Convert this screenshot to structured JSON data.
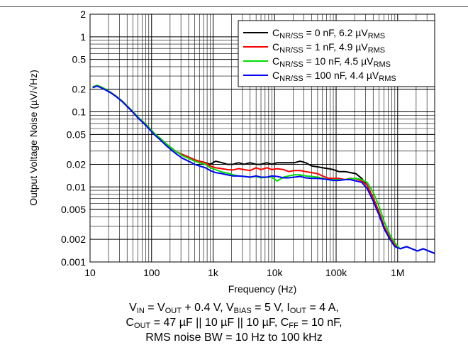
{
  "chart_data": {
    "type": "line",
    "xlabel": "Frequency (Hz)",
    "ylabel": "Output Voltage Noise (µV/√Hz)",
    "xscale": "log",
    "yscale": "log",
    "xlim": [
      10,
      4000000
    ],
    "ylim": [
      0.001,
      2
    ],
    "grid": true,
    "legend_position": "top-right",
    "x_ticks": [
      {
        "value": 10,
        "label": "10"
      },
      {
        "value": 100,
        "label": "100"
      },
      {
        "value": 1000,
        "label": "1k"
      },
      {
        "value": 10000,
        "label": "10k"
      },
      {
        "value": 100000,
        "label": "100k"
      },
      {
        "value": 1000000,
        "label": "1M"
      }
    ],
    "y_ticks": [
      {
        "value": 0.001,
        "label": "0.001"
      },
      {
        "value": 0.002,
        "label": "0.002"
      },
      {
        "value": 0.005,
        "label": "0.005"
      },
      {
        "value": 0.01,
        "label": "0.01"
      },
      {
        "value": 0.02,
        "label": "0.02"
      },
      {
        "value": 0.05,
        "label": "0.05"
      },
      {
        "value": 0.1,
        "label": "0.1"
      },
      {
        "value": 0.2,
        "label": "0.2"
      },
      {
        "value": 0.5,
        "label": "0.5"
      },
      {
        "value": 1,
        "label": "1"
      },
      {
        "value": 2,
        "label": "2"
      }
    ],
    "series": [
      {
        "name": "CNR/SS = 0 nF, 6.2 µVRMS",
        "label_parts": [
          "C",
          "NR/SS",
          " = 0 nF, 6.2 µV",
          "RMS"
        ],
        "color": "#000000",
        "x": [
          11,
          13,
          15,
          18,
          22,
          27,
          33,
          40,
          50,
          60,
          75,
          90,
          110,
          140,
          170,
          210,
          260,
          320,
          400,
          500,
          600,
          750,
          900,
          1100,
          1400,
          1700,
          2100,
          2600,
          3200,
          4000,
          5000,
          6000,
          7500,
          9000,
          11000,
          14000,
          17000,
          21000,
          26000,
          32000,
          40000,
          50000,
          60000,
          75000,
          90000,
          110000,
          140000,
          170000,
          210000,
          260000,
          320000,
          400000,
          500000,
          600000,
          750000,
          900000,
          1100000,
          1400000,
          1700000,
          2100000,
          2600000,
          3200000,
          4000000
        ],
        "y": [
          0.215,
          0.225,
          0.215,
          0.2,
          0.18,
          0.16,
          0.14,
          0.12,
          0.1,
          0.085,
          0.072,
          0.062,
          0.052,
          0.044,
          0.038,
          0.033,
          0.029,
          0.027,
          0.025,
          0.023,
          0.022,
          0.021,
          0.02,
          0.022,
          0.021,
          0.02,
          0.02,
          0.021,
          0.02,
          0.021,
          0.02,
          0.02,
          0.021,
          0.02,
          0.021,
          0.021,
          0.021,
          0.021,
          0.022,
          0.021,
          0.019,
          0.0185,
          0.018,
          0.0175,
          0.017,
          0.016,
          0.016,
          0.0155,
          0.015,
          0.013,
          0.0105,
          0.0072,
          0.0046,
          0.003,
          0.0021,
          0.0017,
          0.0015,
          0.0016,
          0.0015,
          0.0014,
          0.0015,
          0.0014,
          0.0013
        ]
      },
      {
        "name": "CNR/SS = 1 nF, 4.9 µVRMS",
        "label_parts": [
          "C",
          "NR/SS",
          " = 1 nF, 4.9 µV",
          "RMS"
        ],
        "color": "#ff0000",
        "x": [
          11,
          13,
          15,
          18,
          22,
          27,
          33,
          40,
          50,
          60,
          75,
          90,
          110,
          140,
          170,
          210,
          260,
          320,
          400,
          500,
          600,
          750,
          900,
          1100,
          1400,
          1700,
          2100,
          2600,
          3200,
          4000,
          5000,
          6000,
          7500,
          9000,
          11000,
          14000,
          17000,
          21000,
          26000,
          32000,
          40000,
          50000,
          60000,
          75000,
          90000,
          110000,
          140000,
          170000,
          210000,
          260000,
          320000,
          400000,
          500000,
          600000,
          750000,
          900000,
          1100000,
          1400000,
          1700000,
          2100000,
          2600000,
          3200000,
          4000000
        ],
        "y": [
          0.215,
          0.225,
          0.215,
          0.2,
          0.18,
          0.16,
          0.14,
          0.12,
          0.1,
          0.085,
          0.072,
          0.062,
          0.052,
          0.044,
          0.038,
          0.033,
          0.029,
          0.027,
          0.025,
          0.023,
          0.022,
          0.021,
          0.019,
          0.018,
          0.0175,
          0.017,
          0.0168,
          0.0175,
          0.017,
          0.0165,
          0.018,
          0.017,
          0.018,
          0.017,
          0.0175,
          0.017,
          0.016,
          0.0165,
          0.0165,
          0.016,
          0.0155,
          0.015,
          0.014,
          0.013,
          0.013,
          0.013,
          0.0125,
          0.013,
          0.0128,
          0.012,
          0.0105,
          0.0072,
          0.0046,
          0.003,
          0.0021,
          0.0017,
          0.0015,
          0.0016,
          0.0015,
          0.0014,
          0.0015,
          0.0014,
          0.0013
        ]
      },
      {
        "name": "CNR/SS = 10 nF, 4.5 µVRMS",
        "label_parts": [
          "C",
          "NR/SS",
          " = 10 nF, 4.5 µV",
          "RMS"
        ],
        "color": "#00dd00",
        "x": [
          11,
          13,
          15,
          18,
          22,
          27,
          33,
          40,
          50,
          60,
          75,
          90,
          110,
          140,
          170,
          210,
          260,
          320,
          400,
          500,
          600,
          750,
          900,
          1100,
          1400,
          1700,
          2100,
          2600,
          3200,
          4000,
          5000,
          6000,
          7500,
          9000,
          11000,
          14000,
          17000,
          21000,
          26000,
          32000,
          40000,
          50000,
          60000,
          75000,
          90000,
          110000,
          140000,
          170000,
          210000,
          260000,
          320000,
          400000,
          500000,
          600000,
          750000,
          900000,
          1100000,
          1400000,
          1700000,
          2100000,
          2600000,
          3200000,
          4000000
        ],
        "y": [
          0.215,
          0.225,
          0.215,
          0.2,
          0.18,
          0.16,
          0.14,
          0.12,
          0.1,
          0.085,
          0.072,
          0.062,
          0.052,
          0.044,
          0.038,
          0.033,
          0.029,
          0.026,
          0.024,
          0.022,
          0.021,
          0.02,
          0.018,
          0.017,
          0.0158,
          0.0153,
          0.0145,
          0.014,
          0.0138,
          0.0135,
          0.0138,
          0.0132,
          0.0135,
          0.0135,
          0.012,
          0.0135,
          0.014,
          0.0145,
          0.0145,
          0.014,
          0.0138,
          0.0135,
          0.013,
          0.0125,
          0.0125,
          0.0125,
          0.0125,
          0.0128,
          0.013,
          0.0125,
          0.0115,
          0.0085,
          0.0055,
          0.0035,
          0.0023,
          0.0018,
          0.0015,
          0.0016,
          0.0015,
          0.0014,
          0.0015,
          0.0014,
          0.0013
        ]
      },
      {
        "name": "CNR/SS = 100 nF, 4.4 µVRMS",
        "label_parts": [
          "C",
          "NR/SS",
          " = 100 nF, 4.4 µV",
          "RMS"
        ],
        "color": "#0000ff",
        "x": [
          11,
          13,
          15,
          18,
          22,
          27,
          33,
          40,
          50,
          60,
          75,
          90,
          110,
          140,
          170,
          210,
          260,
          320,
          400,
          500,
          600,
          750,
          900,
          1100,
          1400,
          1700,
          2100,
          2600,
          3200,
          4000,
          5000,
          6000,
          7500,
          9000,
          11000,
          14000,
          17000,
          21000,
          26000,
          32000,
          40000,
          50000,
          60000,
          75000,
          90000,
          110000,
          140000,
          170000,
          210000,
          260000,
          320000,
          400000,
          500000,
          600000,
          750000,
          900000,
          1100000,
          1400000,
          1700000,
          2100000,
          2600000,
          3200000,
          4000000
        ],
        "y": [
          0.21,
          0.22,
          0.21,
          0.195,
          0.178,
          0.158,
          0.138,
          0.118,
          0.098,
          0.083,
          0.07,
          0.06,
          0.05,
          0.042,
          0.036,
          0.031,
          0.027,
          0.024,
          0.022,
          0.02,
          0.019,
          0.018,
          0.0165,
          0.0155,
          0.015,
          0.0145,
          0.014,
          0.014,
          0.0138,
          0.0135,
          0.014,
          0.0135,
          0.0135,
          0.014,
          0.0138,
          0.0132,
          0.0132,
          0.0135,
          0.0138,
          0.0132,
          0.013,
          0.013,
          0.0128,
          0.0125,
          0.0122,
          0.0122,
          0.0125,
          0.0125,
          0.012,
          0.0115,
          0.0095,
          0.0065,
          0.0042,
          0.0028,
          0.002,
          0.0016,
          0.0015,
          0.0016,
          0.0015,
          0.0014,
          0.0015,
          0.0014,
          0.0013
        ]
      }
    ]
  },
  "conditions": {
    "line1": [
      "V",
      "IN",
      " = V",
      "OUT",
      " + 0.4 V, V",
      "BIAS",
      " = 5 V, I",
      "OUT",
      " = 4 A,"
    ],
    "line2": [
      "C",
      "OUT",
      " = 47 µF || 10 µF || 10 µF, C",
      "FF",
      " = 10 nF,"
    ],
    "line3": [
      "RMS noise BW = 10 Hz to 100 kHz"
    ]
  }
}
